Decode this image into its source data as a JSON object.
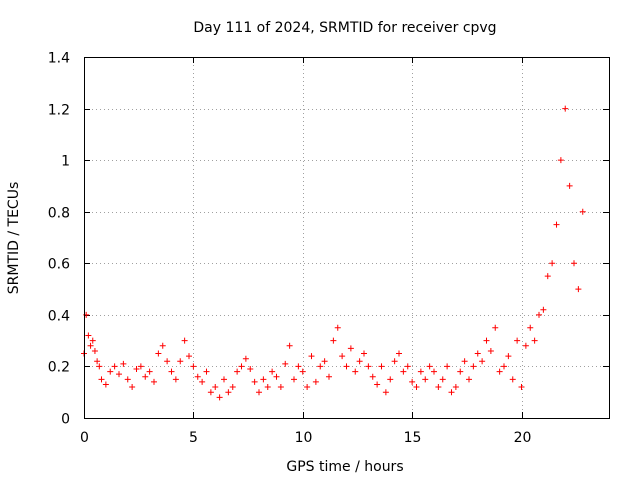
{
  "chart_data": {
    "type": "scatter",
    "title": "Day 111 of 2024, SRMTID for receiver cpvg",
    "xlabel": "GPS time / hours",
    "ylabel": "SRMTID / TECUs",
    "xlim": [
      0,
      24
    ],
    "ylim": [
      0,
      1.4
    ],
    "xticks": [
      0,
      5,
      10,
      15,
      20
    ],
    "xtick_labels": [
      "0",
      "5",
      "10",
      "15",
      "20"
    ],
    "yticks": [
      0,
      0.2,
      0.4,
      0.6,
      0.8,
      1.0,
      1.2,
      1.4
    ],
    "ytick_labels": [
      "0",
      "0.2",
      "0.4",
      "0.6",
      "0.8",
      "1",
      "1.2",
      "1.4"
    ],
    "grid": true,
    "marker": "+",
    "series": [
      {
        "name": "SRMTID",
        "color": "#ff0000",
        "x": [
          0.0,
          0.1,
          0.2,
          0.3,
          0.4,
          0.5,
          0.6,
          0.7,
          0.8,
          1.0,
          1.2,
          1.4,
          1.6,
          1.8,
          2.0,
          2.2,
          2.4,
          2.6,
          2.8,
          3.0,
          3.2,
          3.4,
          3.6,
          3.8,
          4.0,
          4.2,
          4.4,
          4.6,
          4.8,
          5.0,
          5.2,
          5.4,
          5.6,
          5.8,
          6.0,
          6.2,
          6.4,
          6.6,
          6.8,
          7.0,
          7.2,
          7.4,
          7.6,
          7.8,
          8.0,
          8.2,
          8.4,
          8.6,
          8.8,
          9.0,
          9.2,
          9.4,
          9.6,
          9.8,
          10.0,
          10.2,
          10.4,
          10.6,
          10.8,
          11.0,
          11.2,
          11.4,
          11.6,
          11.8,
          12.0,
          12.2,
          12.4,
          12.6,
          12.8,
          13.0,
          13.2,
          13.4,
          13.6,
          13.8,
          14.0,
          14.2,
          14.4,
          14.6,
          14.8,
          15.0,
          15.2,
          15.4,
          15.6,
          15.8,
          16.0,
          16.2,
          16.4,
          16.6,
          16.8,
          17.0,
          17.2,
          17.4,
          17.6,
          17.8,
          18.0,
          18.2,
          18.4,
          18.6,
          18.8,
          19.0,
          19.2,
          19.4,
          19.6,
          19.8,
          20.0,
          20.2,
          20.4,
          20.6,
          20.8,
          21.0,
          21.2,
          21.4,
          21.6,
          21.8,
          22.0,
          22.2,
          22.4,
          22.6,
          22.8
        ],
        "y": [
          0.25,
          0.4,
          0.32,
          0.28,
          0.3,
          0.26,
          0.22,
          0.2,
          0.15,
          0.13,
          0.18,
          0.2,
          0.17,
          0.21,
          0.15,
          0.12,
          0.19,
          0.2,
          0.16,
          0.18,
          0.14,
          0.25,
          0.28,
          0.22,
          0.18,
          0.15,
          0.22,
          0.3,
          0.24,
          0.2,
          0.16,
          0.14,
          0.18,
          0.1,
          0.12,
          0.08,
          0.15,
          0.1,
          0.12,
          0.18,
          0.2,
          0.23,
          0.19,
          0.14,
          0.1,
          0.15,
          0.12,
          0.18,
          0.16,
          0.12,
          0.21,
          0.28,
          0.15,
          0.2,
          0.18,
          0.12,
          0.24,
          0.14,
          0.2,
          0.22,
          0.16,
          0.3,
          0.35,
          0.24,
          0.2,
          0.27,
          0.18,
          0.22,
          0.25,
          0.2,
          0.16,
          0.13,
          0.2,
          0.1,
          0.15,
          0.22,
          0.25,
          0.18,
          0.2,
          0.14,
          0.12,
          0.18,
          0.15,
          0.2,
          0.18,
          0.12,
          0.15,
          0.2,
          0.1,
          0.12,
          0.18,
          0.22,
          0.15,
          0.2,
          0.25,
          0.22,
          0.3,
          0.26,
          0.35,
          0.18,
          0.2,
          0.24,
          0.15,
          0.3,
          0.12,
          0.28,
          0.35,
          0.3,
          0.4,
          0.42,
          0.55,
          0.6,
          0.75,
          1.0,
          1.2,
          0.9,
          0.6,
          0.5,
          0.8
        ]
      }
    ]
  }
}
